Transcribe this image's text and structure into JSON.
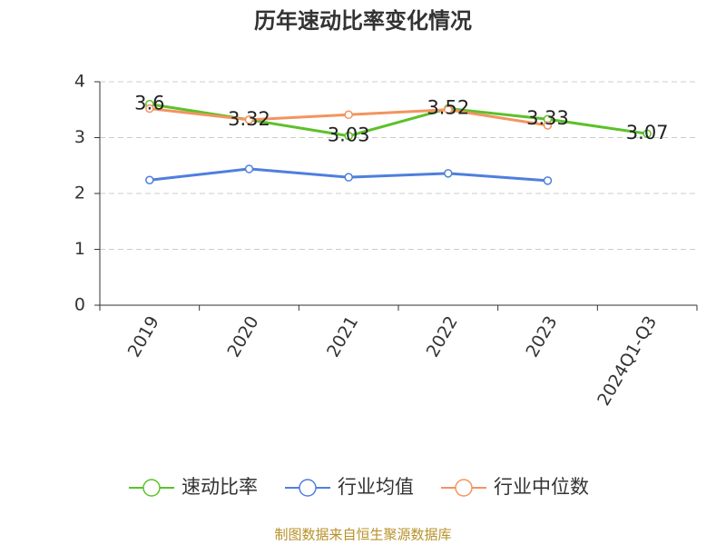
{
  "chart_data": {
    "type": "line",
    "title": "历年速动比率变化情况",
    "categories": [
      "2019",
      "2020",
      "2021",
      "2022",
      "2023",
      "2024Q1-Q3"
    ],
    "series": [
      {
        "name": "速动比率",
        "color": "#5cc12a",
        "values": [
          3.6,
          3.32,
          3.03,
          3.52,
          3.33,
          3.07
        ],
        "show_labels": true
      },
      {
        "name": "行业均值",
        "color": "#4f7fdd",
        "values": [
          2.24,
          2.44,
          2.29,
          2.36,
          2.23,
          null
        ],
        "show_labels": false
      },
      {
        "name": "行业中位数",
        "color": "#f39460",
        "values": [
          3.52,
          3.32,
          3.41,
          3.5,
          3.22,
          null
        ],
        "show_labels": false
      }
    ],
    "ylim": [
      0,
      4
    ],
    "yticks": [
      0,
      1,
      2,
      3,
      4
    ],
    "grid": true,
    "source": "制图数据来自恒生聚源数据库"
  }
}
